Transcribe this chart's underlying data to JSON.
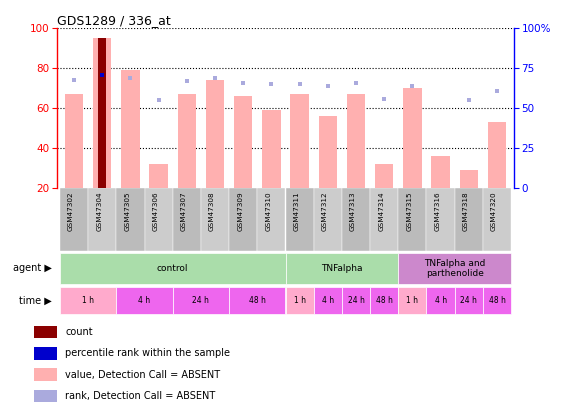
{
  "title": "GDS1289 / 336_at",
  "samples": [
    "GSM47302",
    "GSM47304",
    "GSM47305",
    "GSM47306",
    "GSM47307",
    "GSM47308",
    "GSM47309",
    "GSM47310",
    "GSM47311",
    "GSM47312",
    "GSM47313",
    "GSM47314",
    "GSM47315",
    "GSM47316",
    "GSM47318",
    "GSM47320"
  ],
  "pink_bar_heights": [
    67,
    95,
    79,
    32,
    67,
    74,
    66,
    59,
    67,
    56,
    67,
    32,
    70,
    36,
    29,
    53
  ],
  "blue_square_vals": [
    68,
    null,
    69,
    55,
    67,
    69,
    66,
    65,
    65,
    64,
    66,
    56,
    64,
    null,
    55,
    61
  ],
  "count_bar_index": 1,
  "count_bar_value": 95,
  "count_bar_color": "#8B0000",
  "percentile_index": 1,
  "percentile_value": 71,
  "percentile_color": "#0000CC",
  "ylim_left": [
    20,
    100
  ],
  "ylim_right": [
    0,
    100
  ],
  "yticks_left": [
    20,
    40,
    60,
    80,
    100
  ],
  "yticks_right": [
    0,
    25,
    50,
    75,
    100
  ],
  "ytick_labels_right": [
    "0",
    "25",
    "50",
    "75",
    "100%"
  ],
  "pink_bar_color": "#FFB0B0",
  "blue_sq_color": "#AAAADD",
  "agent_groups": [
    {
      "label": "control",
      "start": 0,
      "end": 8,
      "color": "#AADDAA"
    },
    {
      "label": "TNFalpha",
      "start": 8,
      "end": 12,
      "color": "#AADDAA"
    },
    {
      "label": "TNFalpha and\nparthenolide",
      "start": 12,
      "end": 16,
      "color": "#CC88CC"
    }
  ],
  "time_groups": [
    {
      "label": "1 h",
      "start": 0,
      "end": 2,
      "color": "#FFAACC"
    },
    {
      "label": "4 h",
      "start": 2,
      "end": 4,
      "color": "#EE66EE"
    },
    {
      "label": "24 h",
      "start": 4,
      "end": 6,
      "color": "#EE66EE"
    },
    {
      "label": "48 h",
      "start": 6,
      "end": 8,
      "color": "#EE66EE"
    },
    {
      "label": "1 h",
      "start": 8,
      "end": 9,
      "color": "#FFAACC"
    },
    {
      "label": "4 h",
      "start": 9,
      "end": 10,
      "color": "#EE66EE"
    },
    {
      "label": "24 h",
      "start": 10,
      "end": 11,
      "color": "#EE66EE"
    },
    {
      "label": "48 h",
      "start": 11,
      "end": 12,
      "color": "#EE66EE"
    },
    {
      "label": "1 h",
      "start": 12,
      "end": 13,
      "color": "#FFAACC"
    },
    {
      "label": "4 h",
      "start": 13,
      "end": 14,
      "color": "#EE66EE"
    },
    {
      "label": "24 h",
      "start": 14,
      "end": 15,
      "color": "#EE66EE"
    },
    {
      "label": "48 h",
      "start": 15,
      "end": 16,
      "color": "#EE66EE"
    }
  ],
  "legend_items": [
    {
      "label": "count",
      "color": "#8B0000"
    },
    {
      "label": "percentile rank within the sample",
      "color": "#0000CC"
    },
    {
      "label": "value, Detection Call = ABSENT",
      "color": "#FFB0B0"
    },
    {
      "label": "rank, Detection Call = ABSENT",
      "color": "#AAAADD"
    }
  ],
  "bg_color": "#FFFFFF"
}
